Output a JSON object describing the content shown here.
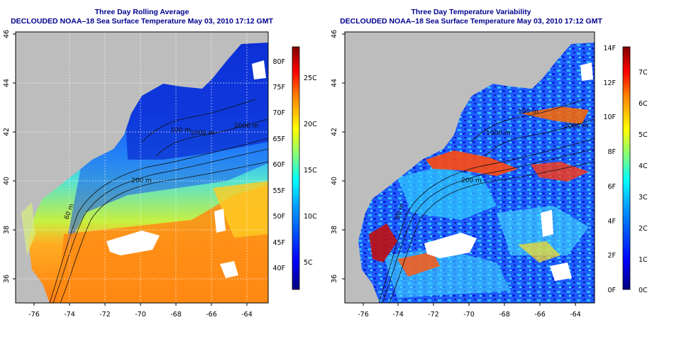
{
  "left_panel": {
    "title": "Three Day Rolling Average",
    "subtitle": "DECLOUDED NOAA–18 Sea Surface Temperature May 03, 2010 17:12 GMT",
    "x_ticks": [
      "-76",
      "-74",
      "-72",
      "-70",
      "-68",
      "-66",
      "-64"
    ],
    "y_ticks": [
      "36",
      "38",
      "40",
      "42",
      "44",
      "46"
    ],
    "colorbar_f": [
      "40F",
      "45F",
      "50F",
      "55F",
      "60F",
      "65F",
      "70F",
      "75F",
      "80F"
    ],
    "colorbar_c": [
      "5C",
      "10C",
      "15C",
      "20C",
      "25C"
    ],
    "contour_labels": [
      "100 m",
      "200 m",
      "1000 m",
      "2000 m",
      "200 m",
      "60 m"
    ]
  },
  "right_panel": {
    "title": "Three Day Temperature Variability",
    "subtitle": "DECLOUDED NOAA–18 Sea Surface Temperature May 03, 2010 17:12 GMT",
    "x_ticks": [
      "-76",
      "-74",
      "-72",
      "-70",
      "-68",
      "-66",
      "-64"
    ],
    "y_ticks": [
      "36",
      "38",
      "40",
      "42",
      "44",
      "46"
    ],
    "colorbar_f": [
      "0F",
      "2F",
      "4F",
      "6F",
      "8F",
      "10F",
      "12F",
      "14F"
    ],
    "colorbar_c": [
      "0C",
      "1C",
      "2C",
      "3C",
      "4C",
      "5C",
      "6C",
      "7C"
    ],
    "contour_labels": [
      "100 m",
      "200 m",
      "1000 m",
      "2000 m",
      "200 m",
      "60 m"
    ]
  },
  "colors": {
    "land": "#bdbdbd",
    "title_text": "#00008f",
    "colormap": [
      "#00007f",
      "#0000ff",
      "#007fff",
      "#00ffff",
      "#7fff7f",
      "#ffff00",
      "#ff7f00",
      "#ff0000",
      "#7f0000"
    ]
  }
}
